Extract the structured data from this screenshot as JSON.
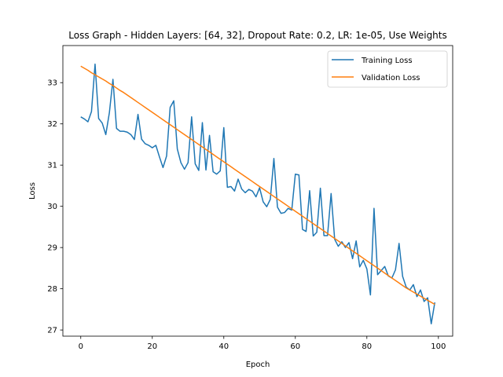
{
  "chart_data": {
    "type": "line",
    "title": "Loss Graph - Hidden Layers: [64, 32], Dropout Rate: 0.2, LR: 1e-05, Use Weights",
    "xlabel": "Epoch",
    "ylabel": "Loss",
    "xlim": [
      -5,
      104
    ],
    "ylim": [
      26.85,
      33.9
    ],
    "xticks": [
      0,
      20,
      40,
      60,
      80,
      100
    ],
    "yticks": [
      27,
      28,
      29,
      30,
      31,
      32,
      33
    ],
    "grid": false,
    "legend_position": "upper right",
    "x": [
      0,
      1,
      2,
      3,
      4,
      5,
      6,
      7,
      8,
      9,
      10,
      11,
      12,
      13,
      14,
      15,
      16,
      17,
      18,
      19,
      20,
      21,
      22,
      23,
      24,
      25,
      26,
      27,
      28,
      29,
      30,
      31,
      32,
      33,
      34,
      35,
      36,
      37,
      38,
      39,
      40,
      41,
      42,
      43,
      44,
      45,
      46,
      47,
      48,
      49,
      50,
      51,
      52,
      53,
      54,
      55,
      56,
      57,
      58,
      59,
      60,
      61,
      62,
      63,
      64,
      65,
      66,
      67,
      68,
      69,
      70,
      71,
      72,
      73,
      74,
      75,
      76,
      77,
      78,
      79,
      80,
      81,
      82,
      83,
      84,
      85,
      86,
      87,
      88,
      89,
      90,
      91,
      92,
      93,
      94,
      95,
      96,
      97,
      98,
      99
    ],
    "series": [
      {
        "name": "Training Loss",
        "color": "#1f77b4",
        "values": [
          32.17,
          32.12,
          32.05,
          32.3,
          33.45,
          32.13,
          32.02,
          31.74,
          32.27,
          33.08,
          31.89,
          31.82,
          31.82,
          31.8,
          31.74,
          31.62,
          32.23,
          31.63,
          31.52,
          31.48,
          31.42,
          31.48,
          31.2,
          30.94,
          31.22,
          32.4,
          32.56,
          31.39,
          31.06,
          30.9,
          31.06,
          32.17,
          31.03,
          30.87,
          32.03,
          30.88,
          31.72,
          30.84,
          30.78,
          30.86,
          31.91,
          30.46,
          30.48,
          30.37,
          30.66,
          30.42,
          30.33,
          30.41,
          30.37,
          30.23,
          30.45,
          30.11,
          29.99,
          30.17,
          31.16,
          29.98,
          29.83,
          29.85,
          29.95,
          29.91,
          30.78,
          30.76,
          29.44,
          29.39,
          30.38,
          29.28,
          29.37,
          30.44,
          29.29,
          29.29,
          30.31,
          29.2,
          29.03,
          29.14,
          29.0,
          29.12,
          28.73,
          29.16,
          28.53,
          28.69,
          28.48,
          27.85,
          29.95,
          28.34,
          28.44,
          28.54,
          28.31,
          28.26,
          28.46,
          29.1,
          28.3,
          28.04,
          27.97,
          28.1,
          27.81,
          27.97,
          27.69,
          27.78,
          27.15,
          27.67
        ]
      },
      {
        "name": "Validation Loss",
        "color": "#ff7f0e",
        "values": [
          33.4,
          33.35,
          33.3,
          33.24,
          33.19,
          33.14,
          33.09,
          33.04,
          32.98,
          32.93,
          32.87,
          32.81,
          32.76,
          32.7,
          32.64,
          32.58,
          32.52,
          32.46,
          32.4,
          32.34,
          32.28,
          32.22,
          32.16,
          32.1,
          32.04,
          31.98,
          31.92,
          31.86,
          31.8,
          31.74,
          31.68,
          31.62,
          31.56,
          31.5,
          31.44,
          31.38,
          31.32,
          31.26,
          31.2,
          31.14,
          31.08,
          31.02,
          30.96,
          30.9,
          30.84,
          30.78,
          30.72,
          30.66,
          30.6,
          30.54,
          30.48,
          30.42,
          30.36,
          30.3,
          30.24,
          30.18,
          30.12,
          30.06,
          30.0,
          29.94,
          29.88,
          29.82,
          29.76,
          29.7,
          29.64,
          29.58,
          29.52,
          29.46,
          29.4,
          29.34,
          29.28,
          29.22,
          29.16,
          29.1,
          29.04,
          28.98,
          28.92,
          28.86,
          28.8,
          28.74,
          28.68,
          28.62,
          28.56,
          28.5,
          28.44,
          28.38,
          28.32,
          28.26,
          28.2,
          28.14,
          28.08,
          28.02,
          27.97,
          27.92,
          27.87,
          27.82,
          27.77,
          27.72,
          27.67,
          27.62
        ]
      }
    ]
  }
}
